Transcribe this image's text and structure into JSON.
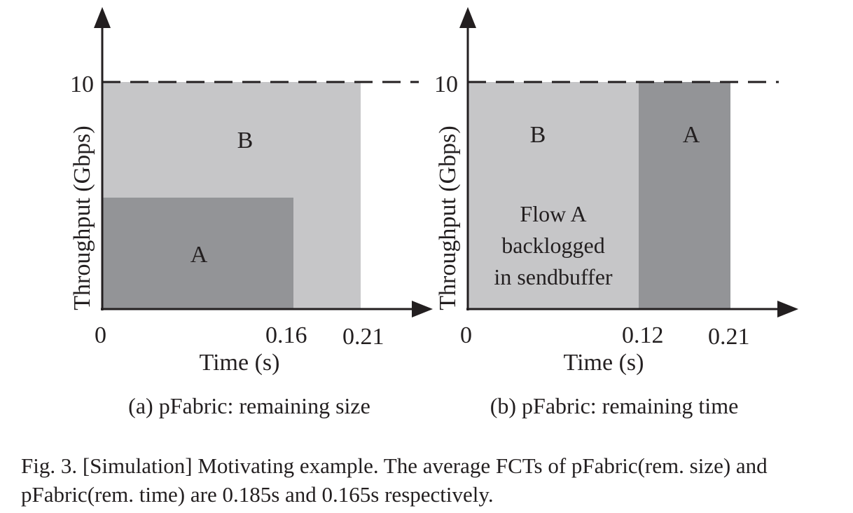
{
  "figure": {
    "panels": [
      {
        "id": "a",
        "subcaption": "(a) pFabric: remaining size",
        "ylabel": "Throughput (Gbps)",
        "xlabel": "Time (s)",
        "y_tick": "10",
        "x_ticks": [
          "0",
          "0.16",
          "0.21"
        ],
        "regions": [
          {
            "label": "B",
            "color": "#c6c6c8"
          },
          {
            "label": "A",
            "color": "#939497"
          }
        ]
      },
      {
        "id": "b",
        "subcaption": "(b) pFabric: remaining time",
        "ylabel": "Throughput (Gbps)",
        "xlabel": "Time (s)",
        "y_tick": "10",
        "x_ticks": [
          "0",
          "0.12",
          "0.21"
        ],
        "regions": [
          {
            "label": "B",
            "color": "#c6c6c8"
          },
          {
            "label": "A",
            "color": "#939497"
          }
        ],
        "annotation": [
          "Flow A",
          "backlogged",
          "in sendbuffer"
        ]
      }
    ],
    "caption": "Fig. 3.  [Simulation] Motivating example. The average FCTs of pFabric(rem. size) and pFabric(rem. time) are 0.185s and 0.165s respectively."
  }
}
